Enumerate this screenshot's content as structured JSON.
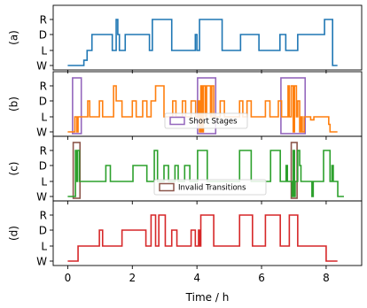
{
  "chart_data": {
    "type": "line",
    "xlabel": "Time / h",
    "xlim": [
      -0.45,
      9.1
    ],
    "xticks": [
      0,
      2,
      4,
      6,
      8
    ],
    "levels": [
      "W",
      "L",
      "D",
      "R"
    ],
    "panels": [
      {
        "label": "(a)",
        "color": "#1f77b4",
        "series": [
          [
            0,
            0
          ],
          [
            0.5,
            0
          ],
          [
            0.5,
            0.35
          ],
          [
            0.6,
            0.35
          ],
          [
            0.6,
            1
          ],
          [
            0.75,
            1
          ],
          [
            0.75,
            2
          ],
          [
            1.38,
            2
          ],
          [
            1.38,
            1
          ],
          [
            1.5,
            1
          ],
          [
            1.5,
            3
          ],
          [
            1.55,
            3
          ],
          [
            1.55,
            2
          ],
          [
            1.6,
            2
          ],
          [
            1.6,
            1
          ],
          [
            1.78,
            1
          ],
          [
            1.78,
            2
          ],
          [
            2.53,
            2
          ],
          [
            2.53,
            1
          ],
          [
            2.62,
            1
          ],
          [
            2.62,
            3
          ],
          [
            3.22,
            3
          ],
          [
            3.22,
            1
          ],
          [
            3.95,
            1
          ],
          [
            3.95,
            2
          ],
          [
            4.0,
            2
          ],
          [
            4.0,
            1
          ],
          [
            4.08,
            1
          ],
          [
            4.08,
            3
          ],
          [
            4.78,
            3
          ],
          [
            4.78,
            1
          ],
          [
            5.35,
            1
          ],
          [
            5.35,
            2
          ],
          [
            5.92,
            2
          ],
          [
            5.92,
            1
          ],
          [
            6.57,
            1
          ],
          [
            6.57,
            2
          ],
          [
            6.75,
            2
          ],
          [
            6.75,
            1
          ],
          [
            7.12,
            1
          ],
          [
            7.12,
            2
          ],
          [
            7.95,
            2
          ],
          [
            7.95,
            3
          ],
          [
            8.2,
            3
          ],
          [
            8.2,
            0
          ],
          [
            8.35,
            0
          ]
        ],
        "highlights": []
      },
      {
        "label": "(b)",
        "color": "#ff7f0e",
        "series": [
          [
            0,
            0
          ],
          [
            0.22,
            0
          ],
          [
            0.22,
            1
          ],
          [
            0.28,
            1
          ],
          [
            0.28,
            0
          ],
          [
            0.32,
            0
          ],
          [
            0.32,
            1
          ],
          [
            0.62,
            1
          ],
          [
            0.62,
            2
          ],
          [
            0.68,
            2
          ],
          [
            0.68,
            1
          ],
          [
            0.98,
            1
          ],
          [
            0.98,
            2
          ],
          [
            1.08,
            2
          ],
          [
            1.08,
            1
          ],
          [
            1.42,
            1
          ],
          [
            1.42,
            3
          ],
          [
            1.5,
            3
          ],
          [
            1.5,
            2
          ],
          [
            1.68,
            2
          ],
          [
            1.68,
            1
          ],
          [
            2.0,
            1
          ],
          [
            2.0,
            2
          ],
          [
            2.12,
            2
          ],
          [
            2.12,
            1
          ],
          [
            2.32,
            1
          ],
          [
            2.32,
            2
          ],
          [
            2.45,
            2
          ],
          [
            2.45,
            1
          ],
          [
            2.58,
            1
          ],
          [
            2.58,
            2
          ],
          [
            2.72,
            2
          ],
          [
            2.72,
            3
          ],
          [
            2.98,
            3
          ],
          [
            2.98,
            1
          ],
          [
            3.25,
            1
          ],
          [
            3.25,
            2
          ],
          [
            3.35,
            2
          ],
          [
            3.35,
            1
          ],
          [
            3.55,
            1
          ],
          [
            3.55,
            2
          ],
          [
            3.65,
            2
          ],
          [
            3.65,
            1
          ],
          [
            3.82,
            1
          ],
          [
            3.82,
            2
          ],
          [
            3.96,
            2
          ],
          [
            3.96,
            1
          ],
          [
            4.04,
            1
          ],
          [
            4.04,
            2
          ],
          [
            4.08,
            2
          ],
          [
            4.08,
            0
          ],
          [
            4.12,
            0
          ],
          [
            4.12,
            3
          ],
          [
            4.16,
            3
          ],
          [
            4.16,
            0
          ],
          [
            4.2,
            0
          ],
          [
            4.2,
            3
          ],
          [
            4.26,
            3
          ],
          [
            4.26,
            1
          ],
          [
            4.3,
            1
          ],
          [
            4.3,
            3
          ],
          [
            4.42,
            3
          ],
          [
            4.42,
            1
          ],
          [
            4.46,
            1
          ],
          [
            4.46,
            3
          ],
          [
            4.52,
            3
          ],
          [
            4.52,
            1
          ],
          [
            4.72,
            1
          ],
          [
            4.72,
            2
          ],
          [
            4.85,
            2
          ],
          [
            4.85,
            1
          ],
          [
            5.32,
            1
          ],
          [
            5.32,
            2
          ],
          [
            5.42,
            2
          ],
          [
            5.42,
            1
          ],
          [
            5.55,
            1
          ],
          [
            5.55,
            2
          ],
          [
            5.68,
            2
          ],
          [
            5.68,
            1
          ],
          [
            6.12,
            1
          ],
          [
            6.12,
            2
          ],
          [
            6.26,
            2
          ],
          [
            6.26,
            1
          ],
          [
            6.52,
            1
          ],
          [
            6.52,
            2
          ],
          [
            6.62,
            2
          ],
          [
            6.62,
            1
          ],
          [
            6.82,
            1
          ],
          [
            6.82,
            3
          ],
          [
            6.86,
            3
          ],
          [
            6.86,
            1
          ],
          [
            6.92,
            1
          ],
          [
            6.92,
            3
          ],
          [
            6.98,
            3
          ],
          [
            6.98,
            0
          ],
          [
            7.02,
            0
          ],
          [
            7.02,
            3
          ],
          [
            7.08,
            3
          ],
          [
            7.08,
            1
          ],
          [
            7.12,
            1
          ],
          [
            7.12,
            2
          ],
          [
            7.18,
            2
          ],
          [
            7.18,
            0
          ],
          [
            7.22,
            0
          ],
          [
            7.22,
            1
          ],
          [
            7.26,
            1
          ],
          [
            7.26,
            0
          ],
          [
            7.32,
            0
          ],
          [
            7.32,
            1
          ],
          [
            7.52,
            1
          ],
          [
            7.52,
            0.8
          ],
          [
            7.62,
            0.8
          ],
          [
            7.62,
            1
          ],
          [
            8.08,
            1
          ],
          [
            8.08,
            0.5
          ],
          [
            8.12,
            0.5
          ],
          [
            8.12,
            0
          ],
          [
            8.35,
            0
          ]
        ],
        "highlights": [
          [
            0.15,
            0.42
          ],
          [
            4.02,
            4.58
          ],
          [
            6.6,
            7.35
          ]
        ]
      },
      {
        "label": "(c)",
        "color": "#2ca02c",
        "series": [
          [
            0,
            0
          ],
          [
            0.24,
            0
          ],
          [
            0.24,
            3
          ],
          [
            0.27,
            3
          ],
          [
            0.27,
            1
          ],
          [
            0.3,
            1
          ],
          [
            0.3,
            3
          ],
          [
            0.36,
            3
          ],
          [
            0.36,
            1
          ],
          [
            1.18,
            1
          ],
          [
            1.18,
            2
          ],
          [
            1.32,
            2
          ],
          [
            1.32,
            1
          ],
          [
            2.02,
            1
          ],
          [
            2.02,
            2
          ],
          [
            2.45,
            2
          ],
          [
            2.45,
            1
          ],
          [
            2.68,
            1
          ],
          [
            2.68,
            3
          ],
          [
            2.78,
            3
          ],
          [
            2.78,
            1
          ],
          [
            2.98,
            1
          ],
          [
            2.98,
            2
          ],
          [
            3.12,
            2
          ],
          [
            3.12,
            1
          ],
          [
            3.32,
            1
          ],
          [
            3.32,
            2
          ],
          [
            3.42,
            2
          ],
          [
            3.42,
            1
          ],
          [
            3.62,
            1
          ],
          [
            3.62,
            2
          ],
          [
            3.78,
            2
          ],
          [
            3.78,
            1
          ],
          [
            4.02,
            1
          ],
          [
            4.02,
            3
          ],
          [
            4.32,
            3
          ],
          [
            4.32,
            1
          ],
          [
            5.32,
            1
          ],
          [
            5.32,
            3
          ],
          [
            5.68,
            3
          ],
          [
            5.68,
            1
          ],
          [
            6.28,
            1
          ],
          [
            6.28,
            3
          ],
          [
            6.58,
            3
          ],
          [
            6.58,
            1
          ],
          [
            6.76,
            1
          ],
          [
            6.76,
            2
          ],
          [
            6.8,
            2
          ],
          [
            6.8,
            1
          ],
          [
            6.94,
            1
          ],
          [
            6.94,
            0
          ],
          [
            6.98,
            0
          ],
          [
            6.98,
            3
          ],
          [
            7.02,
            3
          ],
          [
            7.02,
            0
          ],
          [
            7.04,
            0
          ],
          [
            7.04,
            1
          ],
          [
            7.12,
            1
          ],
          [
            7.12,
            3
          ],
          [
            7.18,
            3
          ],
          [
            7.18,
            2
          ],
          [
            7.22,
            2
          ],
          [
            7.22,
            1
          ],
          [
            7.56,
            1
          ],
          [
            7.56,
            0
          ],
          [
            7.6,
            0
          ],
          [
            7.6,
            1
          ],
          [
            7.92,
            1
          ],
          [
            7.92,
            3
          ],
          [
            8.12,
            3
          ],
          [
            8.12,
            1
          ],
          [
            8.18,
            1
          ],
          [
            8.18,
            2
          ],
          [
            8.22,
            2
          ],
          [
            8.22,
            1
          ],
          [
            8.36,
            1
          ],
          [
            8.36,
            0
          ],
          [
            8.55,
            0
          ]
        ],
        "highlights": [
          [
            0.17,
            0.38
          ],
          [
            6.92,
            7.1
          ]
        ]
      },
      {
        "label": "(d)",
        "color": "#d62728",
        "series": [
          [
            0,
            0
          ],
          [
            0.32,
            0
          ],
          [
            0.32,
            1
          ],
          [
            0.98,
            1
          ],
          [
            0.98,
            2
          ],
          [
            1.08,
            2
          ],
          [
            1.08,
            1
          ],
          [
            1.68,
            1
          ],
          [
            1.68,
            2
          ],
          [
            2.42,
            2
          ],
          [
            2.42,
            1
          ],
          [
            2.58,
            1
          ],
          [
            2.58,
            3
          ],
          [
            2.72,
            3
          ],
          [
            2.72,
            1
          ],
          [
            2.82,
            1
          ],
          [
            2.82,
            3
          ],
          [
            3.02,
            3
          ],
          [
            3.02,
            1
          ],
          [
            3.22,
            1
          ],
          [
            3.22,
            2
          ],
          [
            3.38,
            2
          ],
          [
            3.38,
            1
          ],
          [
            3.82,
            1
          ],
          [
            3.82,
            2
          ],
          [
            3.95,
            2
          ],
          [
            3.95,
            1
          ],
          [
            4.05,
            1
          ],
          [
            4.05,
            2
          ],
          [
            4.08,
            2
          ],
          [
            4.08,
            1
          ],
          [
            4.12,
            1
          ],
          [
            4.12,
            3
          ],
          [
            4.52,
            3
          ],
          [
            4.52,
            1
          ],
          [
            5.32,
            1
          ],
          [
            5.32,
            3
          ],
          [
            5.72,
            3
          ],
          [
            5.72,
            1
          ],
          [
            6.12,
            1
          ],
          [
            6.12,
            3
          ],
          [
            6.58,
            3
          ],
          [
            6.58,
            1
          ],
          [
            6.86,
            1
          ],
          [
            6.86,
            3
          ],
          [
            7.12,
            3
          ],
          [
            7.12,
            1
          ],
          [
            8.0,
            1
          ],
          [
            8.0,
            0
          ],
          [
            8.35,
            0
          ]
        ],
        "highlights": []
      }
    ],
    "legends": [
      {
        "panel": 1,
        "text": "Short Stages",
        "color": "#9467bd"
      },
      {
        "panel": 2,
        "text": "Invalid Transitions",
        "color": "#8c564b"
      }
    ]
  }
}
